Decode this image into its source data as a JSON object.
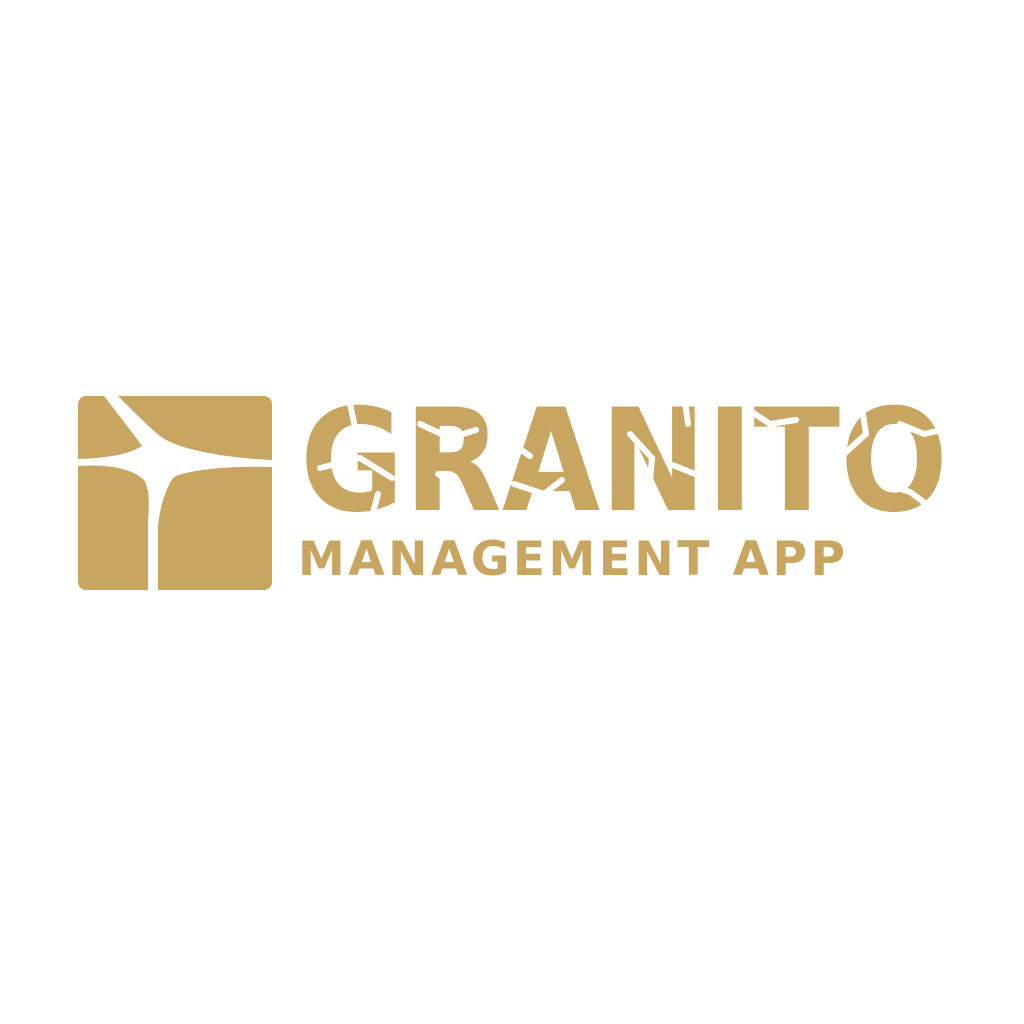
{
  "brand": {
    "name": "GRANITO",
    "tagline": "MANAGEMENT APP",
    "color": "#C8A561",
    "background": "#FFFFFF",
    "mark_icon": "granite-block-icon"
  }
}
